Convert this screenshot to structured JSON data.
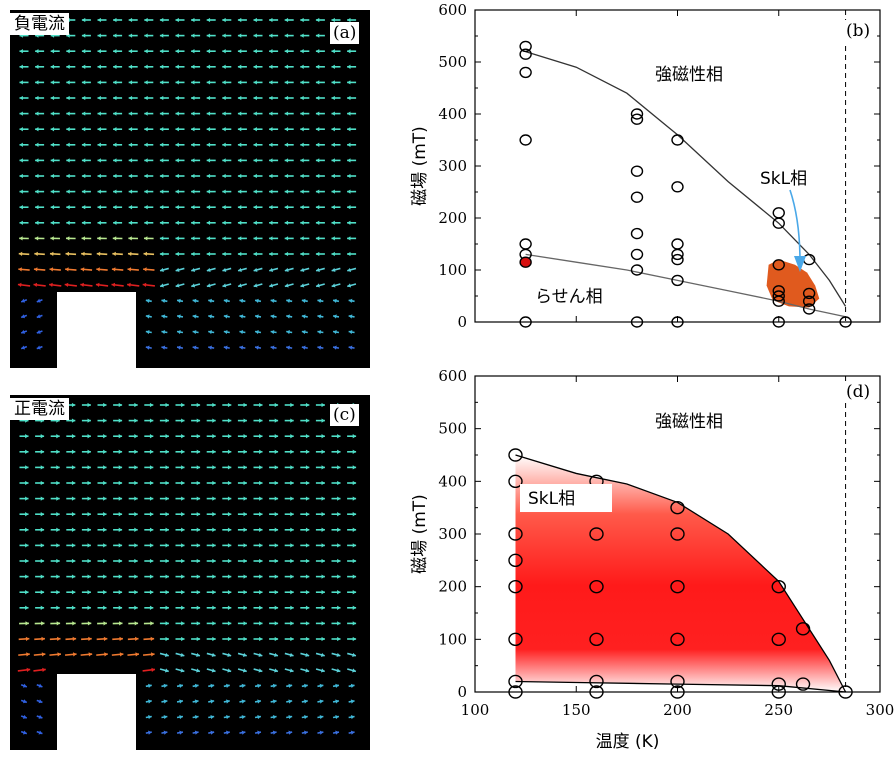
{
  "panels": {
    "a": {
      "letter": "(a)",
      "label": "負電流"
    },
    "c": {
      "letter": "(c)",
      "label": "正電流"
    },
    "b": {
      "letter": "(b)"
    },
    "d": {
      "letter": "(d)"
    }
  },
  "colors": {
    "vector_background": "#000000",
    "vector_cyan": "#4fe0c8",
    "vector_orange": "#f07a30",
    "vector_red": "#e02020",
    "vector_blue": "#3060e0",
    "skl_region_b": "#e05a1e",
    "skl_region_d": "#ff1a1a",
    "annotation_arrow": "#4aa8e8"
  },
  "chart_data": [
    {
      "id": "b",
      "type": "scatter",
      "ylabel": "磁場 (mT)",
      "ylim": [
        0,
        600
      ],
      "xlim": [
        100,
        300
      ],
      "yticks": [
        "0",
        "100",
        "200",
        "300",
        "400",
        "500",
        "600"
      ],
      "region_labels": {
        "ferro": "強磁性相",
        "helical": "らせん相",
        "skl": "SkL相"
      },
      "points": [
        [
          125,
          530
        ],
        [
          125,
          515
        ],
        [
          125,
          480
        ],
        [
          125,
          350
        ],
        [
          125,
          150
        ],
        [
          125,
          130
        ],
        [
          125,
          115
        ],
        [
          125,
          0
        ],
        [
          180,
          400
        ],
        [
          180,
          390
        ],
        [
          180,
          290
        ],
        [
          180,
          240
        ],
        [
          180,
          170
        ],
        [
          180,
          130
        ],
        [
          180,
          100
        ],
        [
          180,
          0
        ],
        [
          200,
          350
        ],
        [
          200,
          260
        ],
        [
          200,
          150
        ],
        [
          200,
          130
        ],
        [
          200,
          120
        ],
        [
          200,
          80
        ],
        [
          200,
          0
        ],
        [
          250,
          210
        ],
        [
          250,
          190
        ],
        [
          250,
          110
        ],
        [
          250,
          60
        ],
        [
          250,
          50
        ],
        [
          250,
          40
        ],
        [
          250,
          0
        ],
        [
          265,
          120
        ],
        [
          265,
          55
        ],
        [
          265,
          40
        ],
        [
          265,
          25
        ],
        [
          283,
          0
        ]
      ],
      "highlight_point": [
        125,
        115
      ],
      "upper_boundary": [
        [
          125,
          520
        ],
        [
          150,
          490
        ],
        [
          175,
          440
        ],
        [
          200,
          360
        ],
        [
          225,
          270
        ],
        [
          250,
          190
        ],
        [
          265,
          130
        ],
        [
          275,
          80
        ],
        [
          283,
          30
        ]
      ],
      "lower_boundary": [
        [
          125,
          130
        ],
        [
          150,
          115
        ],
        [
          175,
          100
        ],
        [
          200,
          80
        ],
        [
          225,
          60
        ],
        [
          250,
          40
        ],
        [
          265,
          25
        ],
        [
          283,
          10
        ]
      ],
      "skl_region": [
        [
          245,
          110
        ],
        [
          250,
          120
        ],
        [
          258,
          110
        ],
        [
          264,
          95
        ],
        [
          268,
          70
        ],
        [
          270,
          45
        ],
        [
          265,
          28
        ],
        [
          255,
          30
        ],
        [
          247,
          42
        ],
        [
          244,
          70
        ]
      ],
      "tc_line_x": 283
    },
    {
      "id": "d",
      "type": "scatter",
      "xlabel": "温度 (K)",
      "ylabel": "磁場 (mT)",
      "ylim": [
        0,
        600
      ],
      "xlim": [
        100,
        300
      ],
      "xticks": [
        "100",
        "150",
        "200",
        "250",
        "300"
      ],
      "yticks": [
        "0",
        "100",
        "200",
        "300",
        "400",
        "500",
        "600"
      ],
      "region_labels": {
        "ferro": "強磁性相",
        "skl": "SkL相"
      },
      "points": [
        [
          120,
          450
        ],
        [
          120,
          400
        ],
        [
          120,
          300
        ],
        [
          120,
          250
        ],
        [
          120,
          200
        ],
        [
          120,
          100
        ],
        [
          120,
          20
        ],
        [
          120,
          0
        ],
        [
          160,
          400
        ],
        [
          160,
          300
        ],
        [
          160,
          200
        ],
        [
          160,
          100
        ],
        [
          160,
          20
        ],
        [
          160,
          0
        ],
        [
          200,
          350
        ],
        [
          200,
          300
        ],
        [
          200,
          200
        ],
        [
          200,
          100
        ],
        [
          200,
          20
        ],
        [
          200,
          0
        ],
        [
          250,
          200
        ],
        [
          250,
          100
        ],
        [
          250,
          15
        ],
        [
          250,
          0
        ],
        [
          262,
          120
        ],
        [
          262,
          15
        ],
        [
          283,
          0
        ]
      ],
      "upper_boundary": [
        [
          120,
          450
        ],
        [
          150,
          415
        ],
        [
          175,
          395
        ],
        [
          200,
          360
        ],
        [
          225,
          300
        ],
        [
          250,
          210
        ],
        [
          265,
          120
        ],
        [
          275,
          60
        ],
        [
          283,
          0
        ]
      ],
      "lower_boundary": [
        [
          120,
          20
        ],
        [
          150,
          18
        ],
        [
          200,
          15
        ],
        [
          250,
          12
        ],
        [
          283,
          0
        ]
      ],
      "tc_line_x": 283
    }
  ]
}
